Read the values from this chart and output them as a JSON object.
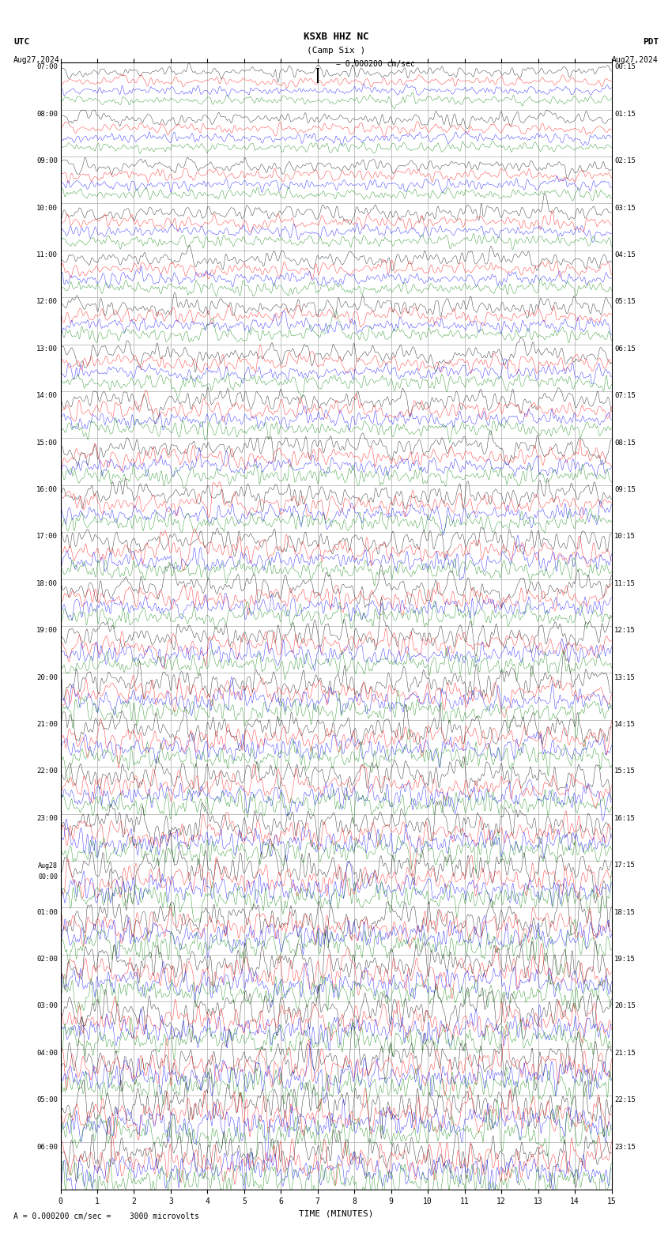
{
  "title_line1": "KSXB HHZ NC",
  "title_line2": "(Camp Six )",
  "scale_text": "= 0.000200 cm/sec",
  "bottom_scale_text": "= 0.000200 cm/sec =    3000 microvolts",
  "utc_label": "UTC",
  "utc_date": "Aug27,2024",
  "pdt_label": "PDT",
  "pdt_date": "Aug27,2024",
  "xlabel": "TIME (MINUTES)",
  "left_times": [
    "07:00",
    "08:00",
    "09:00",
    "10:00",
    "11:00",
    "12:00",
    "13:00",
    "14:00",
    "15:00",
    "16:00",
    "17:00",
    "18:00",
    "19:00",
    "20:00",
    "21:00",
    "22:00",
    "23:00",
    "Aug28\n00:00",
    "01:00",
    "02:00",
    "03:00",
    "04:00",
    "05:00",
    "06:00"
  ],
  "right_times": [
    "00:15",
    "01:15",
    "02:15",
    "03:15",
    "04:15",
    "05:15",
    "06:15",
    "07:15",
    "08:15",
    "09:15",
    "10:15",
    "11:15",
    "12:15",
    "13:15",
    "14:15",
    "15:15",
    "16:15",
    "17:15",
    "18:15",
    "19:15",
    "20:15",
    "21:15",
    "22:15",
    "23:15"
  ],
  "n_rows": 24,
  "n_traces_per_row": 4,
  "trace_colors": [
    "black",
    "red",
    "blue",
    "green"
  ],
  "bg_color": "white",
  "grid_color": "#aaaaaa",
  "n_minutes": 15,
  "xticks": [
    0,
    1,
    2,
    3,
    4,
    5,
    6,
    7,
    8,
    9,
    10,
    11,
    12,
    13,
    14,
    15
  ],
  "noise_seed": 42,
  "amplitude_scale": [
    0.4,
    0.35,
    0.3,
    0.3
  ],
  "fig_width": 8.5,
  "fig_height": 15.84
}
